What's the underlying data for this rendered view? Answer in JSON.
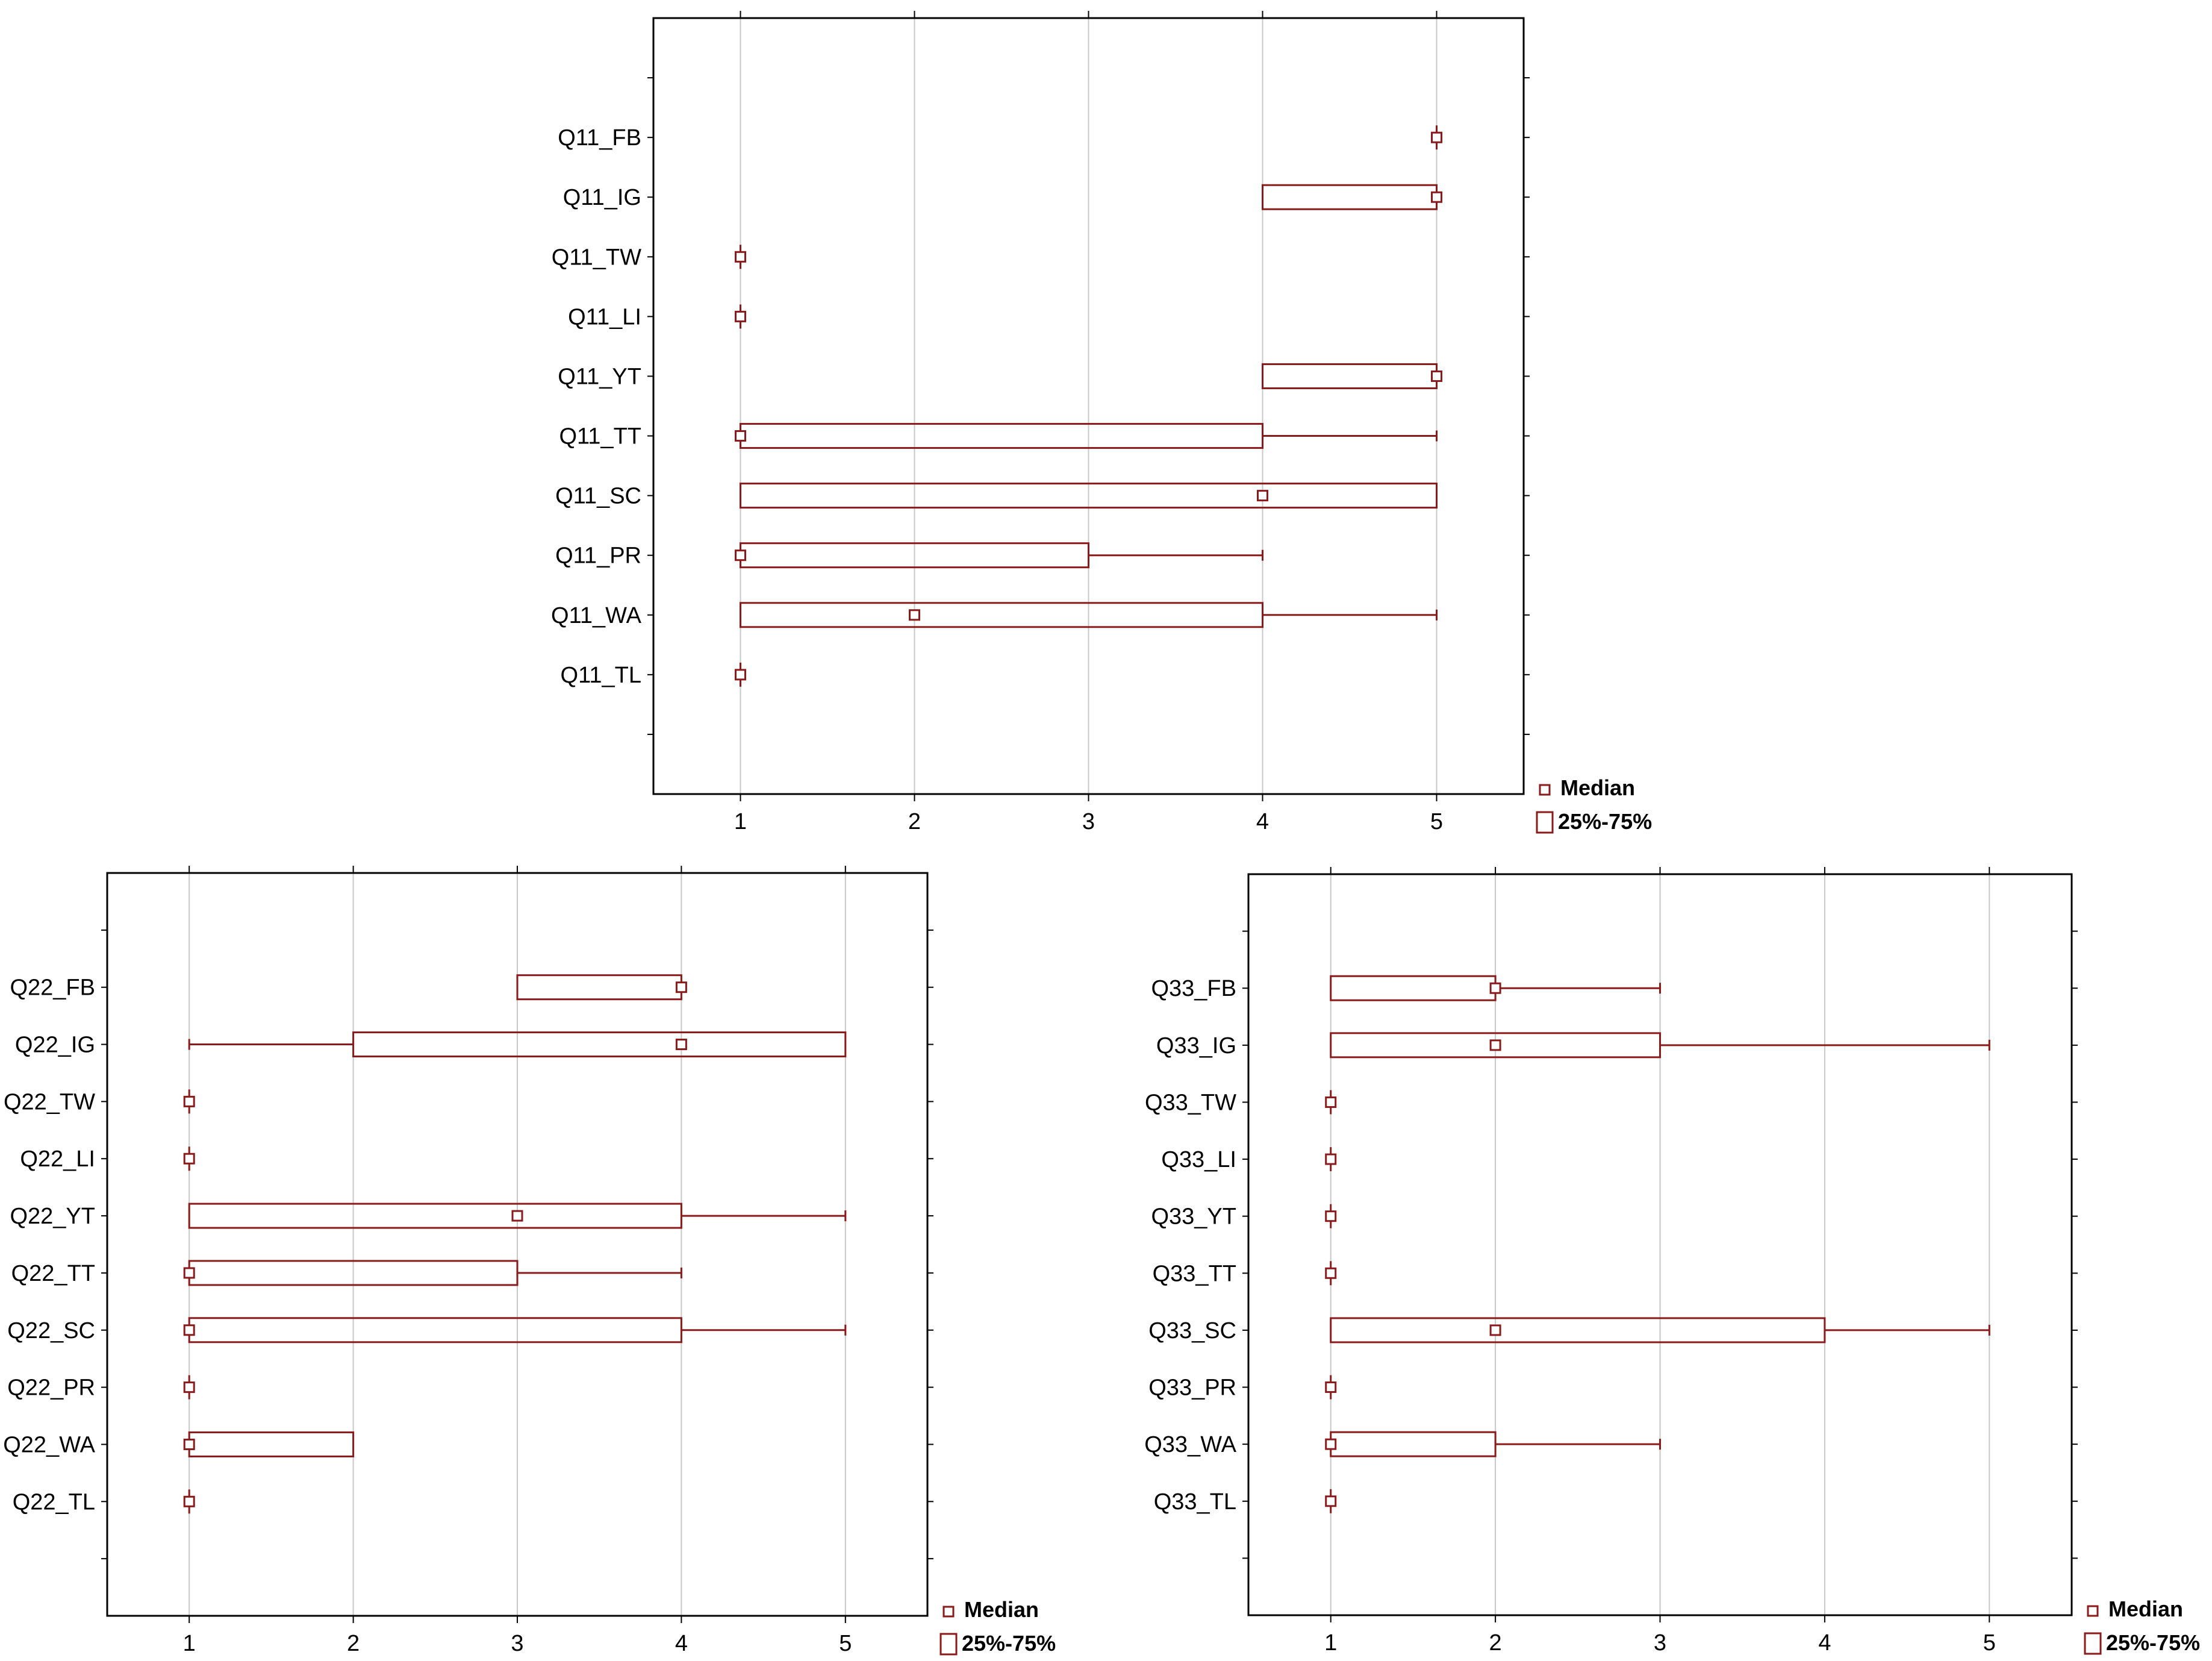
{
  "colors": {
    "series": "#8b1a1a",
    "axis": "#000000",
    "grid": "#c8c8c8",
    "text": "#000000",
    "background": "#ffffff"
  },
  "chart_data": [
    {
      "type": "box",
      "orientation": "horizontal",
      "xlim": [
        0.5,
        5.5
      ],
      "xticks": [
        1,
        2,
        3,
        4,
        5
      ],
      "grid": true,
      "legend": {
        "placement": "bottom-right",
        "median_label": "Median",
        "box_label": "25%-75%"
      },
      "categories": [
        "Q11_FB",
        "Q11_IG",
        "Q11_TW",
        "Q11_LI",
        "Q11_YT",
        "Q11_TT",
        "Q11_SC",
        "Q11_PR",
        "Q11_WA",
        "Q11_TL"
      ],
      "series": [
        {
          "name": "Q11_FB",
          "min": 5,
          "q1": 5,
          "median": 5,
          "q3": 5,
          "max": 5
        },
        {
          "name": "Q11_IG",
          "min": 4,
          "q1": 4,
          "median": 5,
          "q3": 5,
          "max": 5
        },
        {
          "name": "Q11_TW",
          "min": 1,
          "q1": 1,
          "median": 1,
          "q3": 1,
          "max": 1
        },
        {
          "name": "Q11_LI",
          "min": 1,
          "q1": 1,
          "median": 1,
          "q3": 1,
          "max": 1
        },
        {
          "name": "Q11_YT",
          "min": 4,
          "q1": 4,
          "median": 5,
          "q3": 5,
          "max": 5
        },
        {
          "name": "Q11_TT",
          "min": 1,
          "q1": 1,
          "median": 1,
          "q3": 4,
          "max": 5
        },
        {
          "name": "Q11_SC",
          "min": 1,
          "q1": 1,
          "median": 4,
          "q3": 5,
          "max": 5
        },
        {
          "name": "Q11_PR",
          "min": 1,
          "q1": 1,
          "median": 1,
          "q3": 3,
          "max": 4
        },
        {
          "name": "Q11_WA",
          "min": 1,
          "q1": 1,
          "median": 2,
          "q3": 4,
          "max": 5
        },
        {
          "name": "Q11_TL",
          "min": 1,
          "q1": 1,
          "median": 1,
          "q3": 1,
          "max": 1
        }
      ]
    },
    {
      "type": "box",
      "orientation": "horizontal",
      "xlim": [
        0.5,
        5.5
      ],
      "xticks": [
        1,
        2,
        3,
        4,
        5
      ],
      "grid": true,
      "legend": {
        "placement": "bottom-right",
        "median_label": "Median",
        "box_label": "25%-75%"
      },
      "categories": [
        "Q22_FB",
        "Q22_IG",
        "Q22_TW",
        "Q22_LI",
        "Q22_YT",
        "Q22_TT",
        "Q22_SC",
        "Q22_PR",
        "Q22_WA",
        "Q22_TL"
      ],
      "series": [
        {
          "name": "Q22_FB",
          "min": 3,
          "q1": 3,
          "median": 4,
          "q3": 4,
          "max": 4
        },
        {
          "name": "Q22_IG",
          "min": 1,
          "q1": 2,
          "median": 4,
          "q3": 5,
          "max": 5
        },
        {
          "name": "Q22_TW",
          "min": 1,
          "q1": 1,
          "median": 1,
          "q3": 1,
          "max": 1
        },
        {
          "name": "Q22_LI",
          "min": 1,
          "q1": 1,
          "median": 1,
          "q3": 1,
          "max": 1
        },
        {
          "name": "Q22_YT",
          "min": 1,
          "q1": 1,
          "median": 3,
          "q3": 4,
          "max": 5
        },
        {
          "name": "Q22_TT",
          "min": 1,
          "q1": 1,
          "median": 1,
          "q3": 3,
          "max": 4
        },
        {
          "name": "Q22_SC",
          "min": 1,
          "q1": 1,
          "median": 1,
          "q3": 4,
          "max": 5
        },
        {
          "name": "Q22_PR",
          "min": 1,
          "q1": 1,
          "median": 1,
          "q3": 1,
          "max": 1
        },
        {
          "name": "Q22_WA",
          "min": 1,
          "q1": 1,
          "median": 1,
          "q3": 2,
          "max": 2
        },
        {
          "name": "Q22_TL",
          "min": 1,
          "q1": 1,
          "median": 1,
          "q3": 1,
          "max": 1
        }
      ]
    },
    {
      "type": "box",
      "orientation": "horizontal",
      "xlim": [
        0.5,
        5.5
      ],
      "xticks": [
        1,
        2,
        3,
        4,
        5
      ],
      "grid": true,
      "legend": {
        "placement": "bottom-right",
        "median_label": "Median",
        "box_label": "25%-75%"
      },
      "categories": [
        "Q33_FB",
        "Q33_IG",
        "Q33_TW",
        "Q33_LI",
        "Q33_YT",
        "Q33_TT",
        "Q33_SC",
        "Q33_PR",
        "Q33_WA",
        "Q33_TL"
      ],
      "series": [
        {
          "name": "Q33_FB",
          "min": 1,
          "q1": 1,
          "median": 2,
          "q3": 2,
          "max": 3
        },
        {
          "name": "Q33_IG",
          "min": 1,
          "q1": 1,
          "median": 2,
          "q3": 3,
          "max": 5
        },
        {
          "name": "Q33_TW",
          "min": 1,
          "q1": 1,
          "median": 1,
          "q3": 1,
          "max": 1
        },
        {
          "name": "Q33_LI",
          "min": 1,
          "q1": 1,
          "median": 1,
          "q3": 1,
          "max": 1
        },
        {
          "name": "Q33_YT",
          "min": 1,
          "q1": 1,
          "median": 1,
          "q3": 1,
          "max": 1
        },
        {
          "name": "Q33_TT",
          "min": 1,
          "q1": 1,
          "median": 1,
          "q3": 1,
          "max": 1
        },
        {
          "name": "Q33_SC",
          "min": 1,
          "q1": 1,
          "median": 2,
          "q3": 4,
          "max": 5
        },
        {
          "name": "Q33_PR",
          "min": 1,
          "q1": 1,
          "median": 1,
          "q3": 1,
          "max": 1
        },
        {
          "name": "Q33_WA",
          "min": 1,
          "q1": 1,
          "median": 1,
          "q3": 2,
          "max": 3
        },
        {
          "name": "Q33_TL",
          "min": 1,
          "q1": 1,
          "median": 1,
          "q3": 1,
          "max": 1
        }
      ]
    }
  ]
}
